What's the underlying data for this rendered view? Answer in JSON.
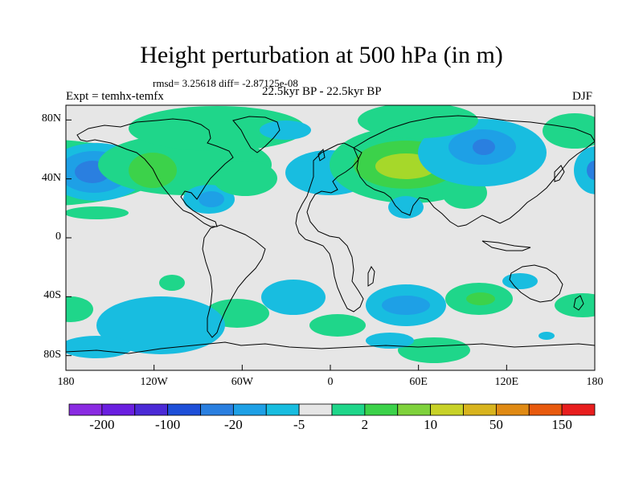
{
  "title": "Height perturbation at 500 hPa (in m)",
  "stats": {
    "rmsd_text": "rmsd= 3.25618 diff= -2.87125e-08"
  },
  "period": "22.5kyr BP - 22.5kyr BP",
  "experiment": "Expt = temhx-temfx",
  "season": "DJF",
  "map": {
    "lon_range": [
      -180,
      180
    ],
    "lat_range": [
      -90,
      90
    ],
    "lat_labels": [
      "80N",
      "40N",
      "0",
      "40S",
      "80S"
    ],
    "lat_values": [
      80,
      40,
      0,
      -40,
      -80
    ],
    "lon_labels": [
      "180",
      "120W",
      "60W",
      "0",
      "60E",
      "120E",
      "180"
    ],
    "lon_values": [
      -180,
      -120,
      -60,
      0,
      60,
      120,
      180
    ]
  },
  "colorbar": {
    "labels": [
      "-200",
      "-100",
      "-20",
      "-5",
      "2",
      "10",
      "50",
      "150"
    ],
    "label_bin_index": [
      1,
      3,
      5,
      7,
      9,
      11,
      13,
      15
    ],
    "colors": [
      "#8a2be2",
      "#6a1fe0",
      "#4b2ad6",
      "#1e4fd8",
      "#2a7fe0",
      "#1ea0e6",
      "#18bde0",
      "#e6e6e6",
      "#1fd68a",
      "#3cd24a",
      "#7fd23c",
      "#c8d228",
      "#d8b41e",
      "#e08a14",
      "#e85a0e",
      "#e81e1e"
    ]
  },
  "field_colors": {
    "neutral": "#e6e6e6",
    "pos1": "#1fd68a",
    "pos2": "#3cd24a",
    "pos3": "#a6d82a",
    "neg1": "#18bde0",
    "neg2": "#1ea0e6",
    "neg3": "#2a7fe0",
    "neg4": "#1e4fd8"
  }
}
